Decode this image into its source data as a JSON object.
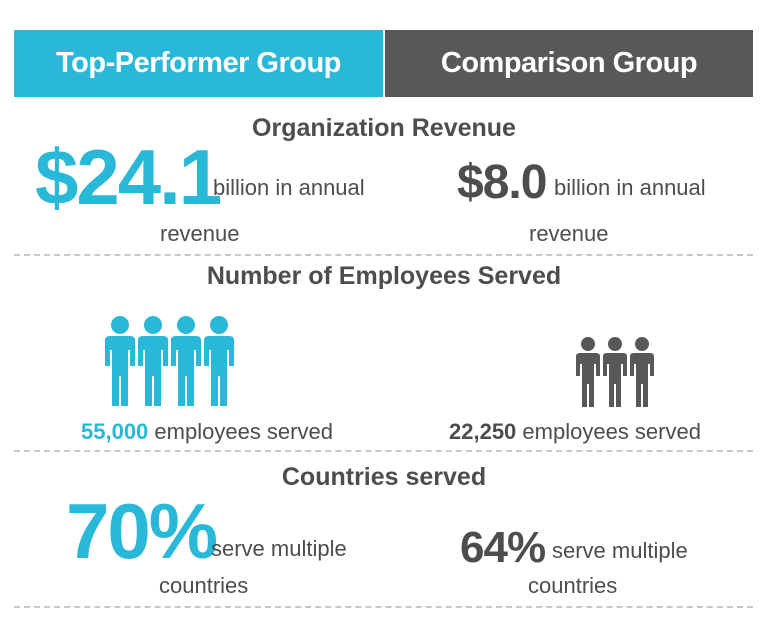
{
  "headers": {
    "left": "Top-Performer Group",
    "right": "Comparison Group"
  },
  "revenue": {
    "title": "Organization Revenue",
    "left_value": "$24.1",
    "left_desc": "billion in annual",
    "left_desc2": "revenue",
    "right_value": "$8.0",
    "right_desc": "billion in annual",
    "right_desc2": "revenue"
  },
  "employees": {
    "title": "Number of Employees Served",
    "left_value": "55,000",
    "left_desc": "employees served",
    "right_value": "22,250",
    "right_desc": "employees served",
    "left_icon": "people-group-icon",
    "right_icon": "people-group-icon"
  },
  "countries": {
    "title": "Countries served",
    "left_value": "70%",
    "left_desc": "serve multiple",
    "left_desc2": "countries",
    "right_value": "64%",
    "right_desc": "serve multiple",
    "right_desc2": "countries"
  },
  "colors": {
    "teal": "#29b8d7",
    "dark_gray": "#58585a",
    "text_gray": "#4d4d4f"
  }
}
